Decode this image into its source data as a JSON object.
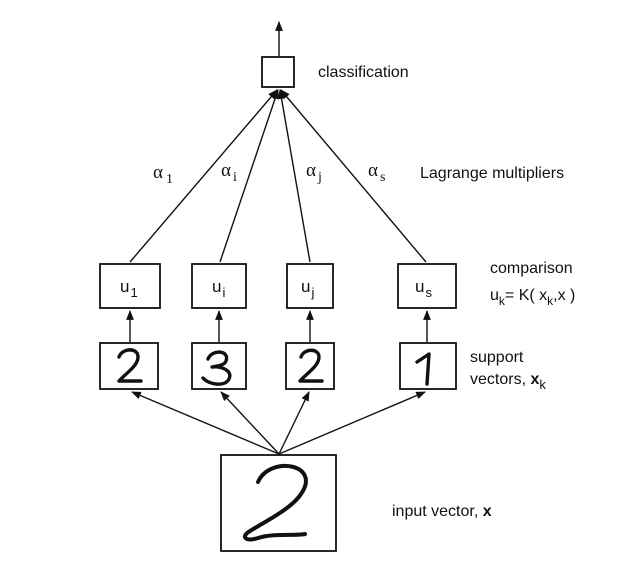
{
  "labels": {
    "classification": "classification",
    "lagrange": "Lagrange multipliers",
    "comparison": "comparison",
    "comparison_formula_lhs": "u",
    "comparison_formula_sub": "k",
    "comparison_formula_rhs": "= K( x",
    "comparison_formula_rhs_sub": "k",
    "comparison_formula_end": ",x )",
    "support_line1": "support",
    "support_line2": "vectors, ",
    "support_x": "x",
    "support_sub": "k",
    "input_text": "input vector, ",
    "input_x": "x"
  },
  "multipliers": [
    {
      "sym": "α",
      "sub": "1"
    },
    {
      "sym": "α",
      "sub": "i"
    },
    {
      "sym": "α",
      "sub": "j"
    },
    {
      "sym": "α",
      "sub": "s"
    }
  ],
  "comparison_nodes": [
    {
      "sym": "u",
      "sub": "1"
    },
    {
      "sym": "u",
      "sub": "i"
    },
    {
      "sym": "u",
      "sub": "j"
    },
    {
      "sym": "u",
      "sub": "s"
    }
  ],
  "support_digits": [
    "2",
    "3",
    "2",
    "1"
  ],
  "input_digit": "2"
}
